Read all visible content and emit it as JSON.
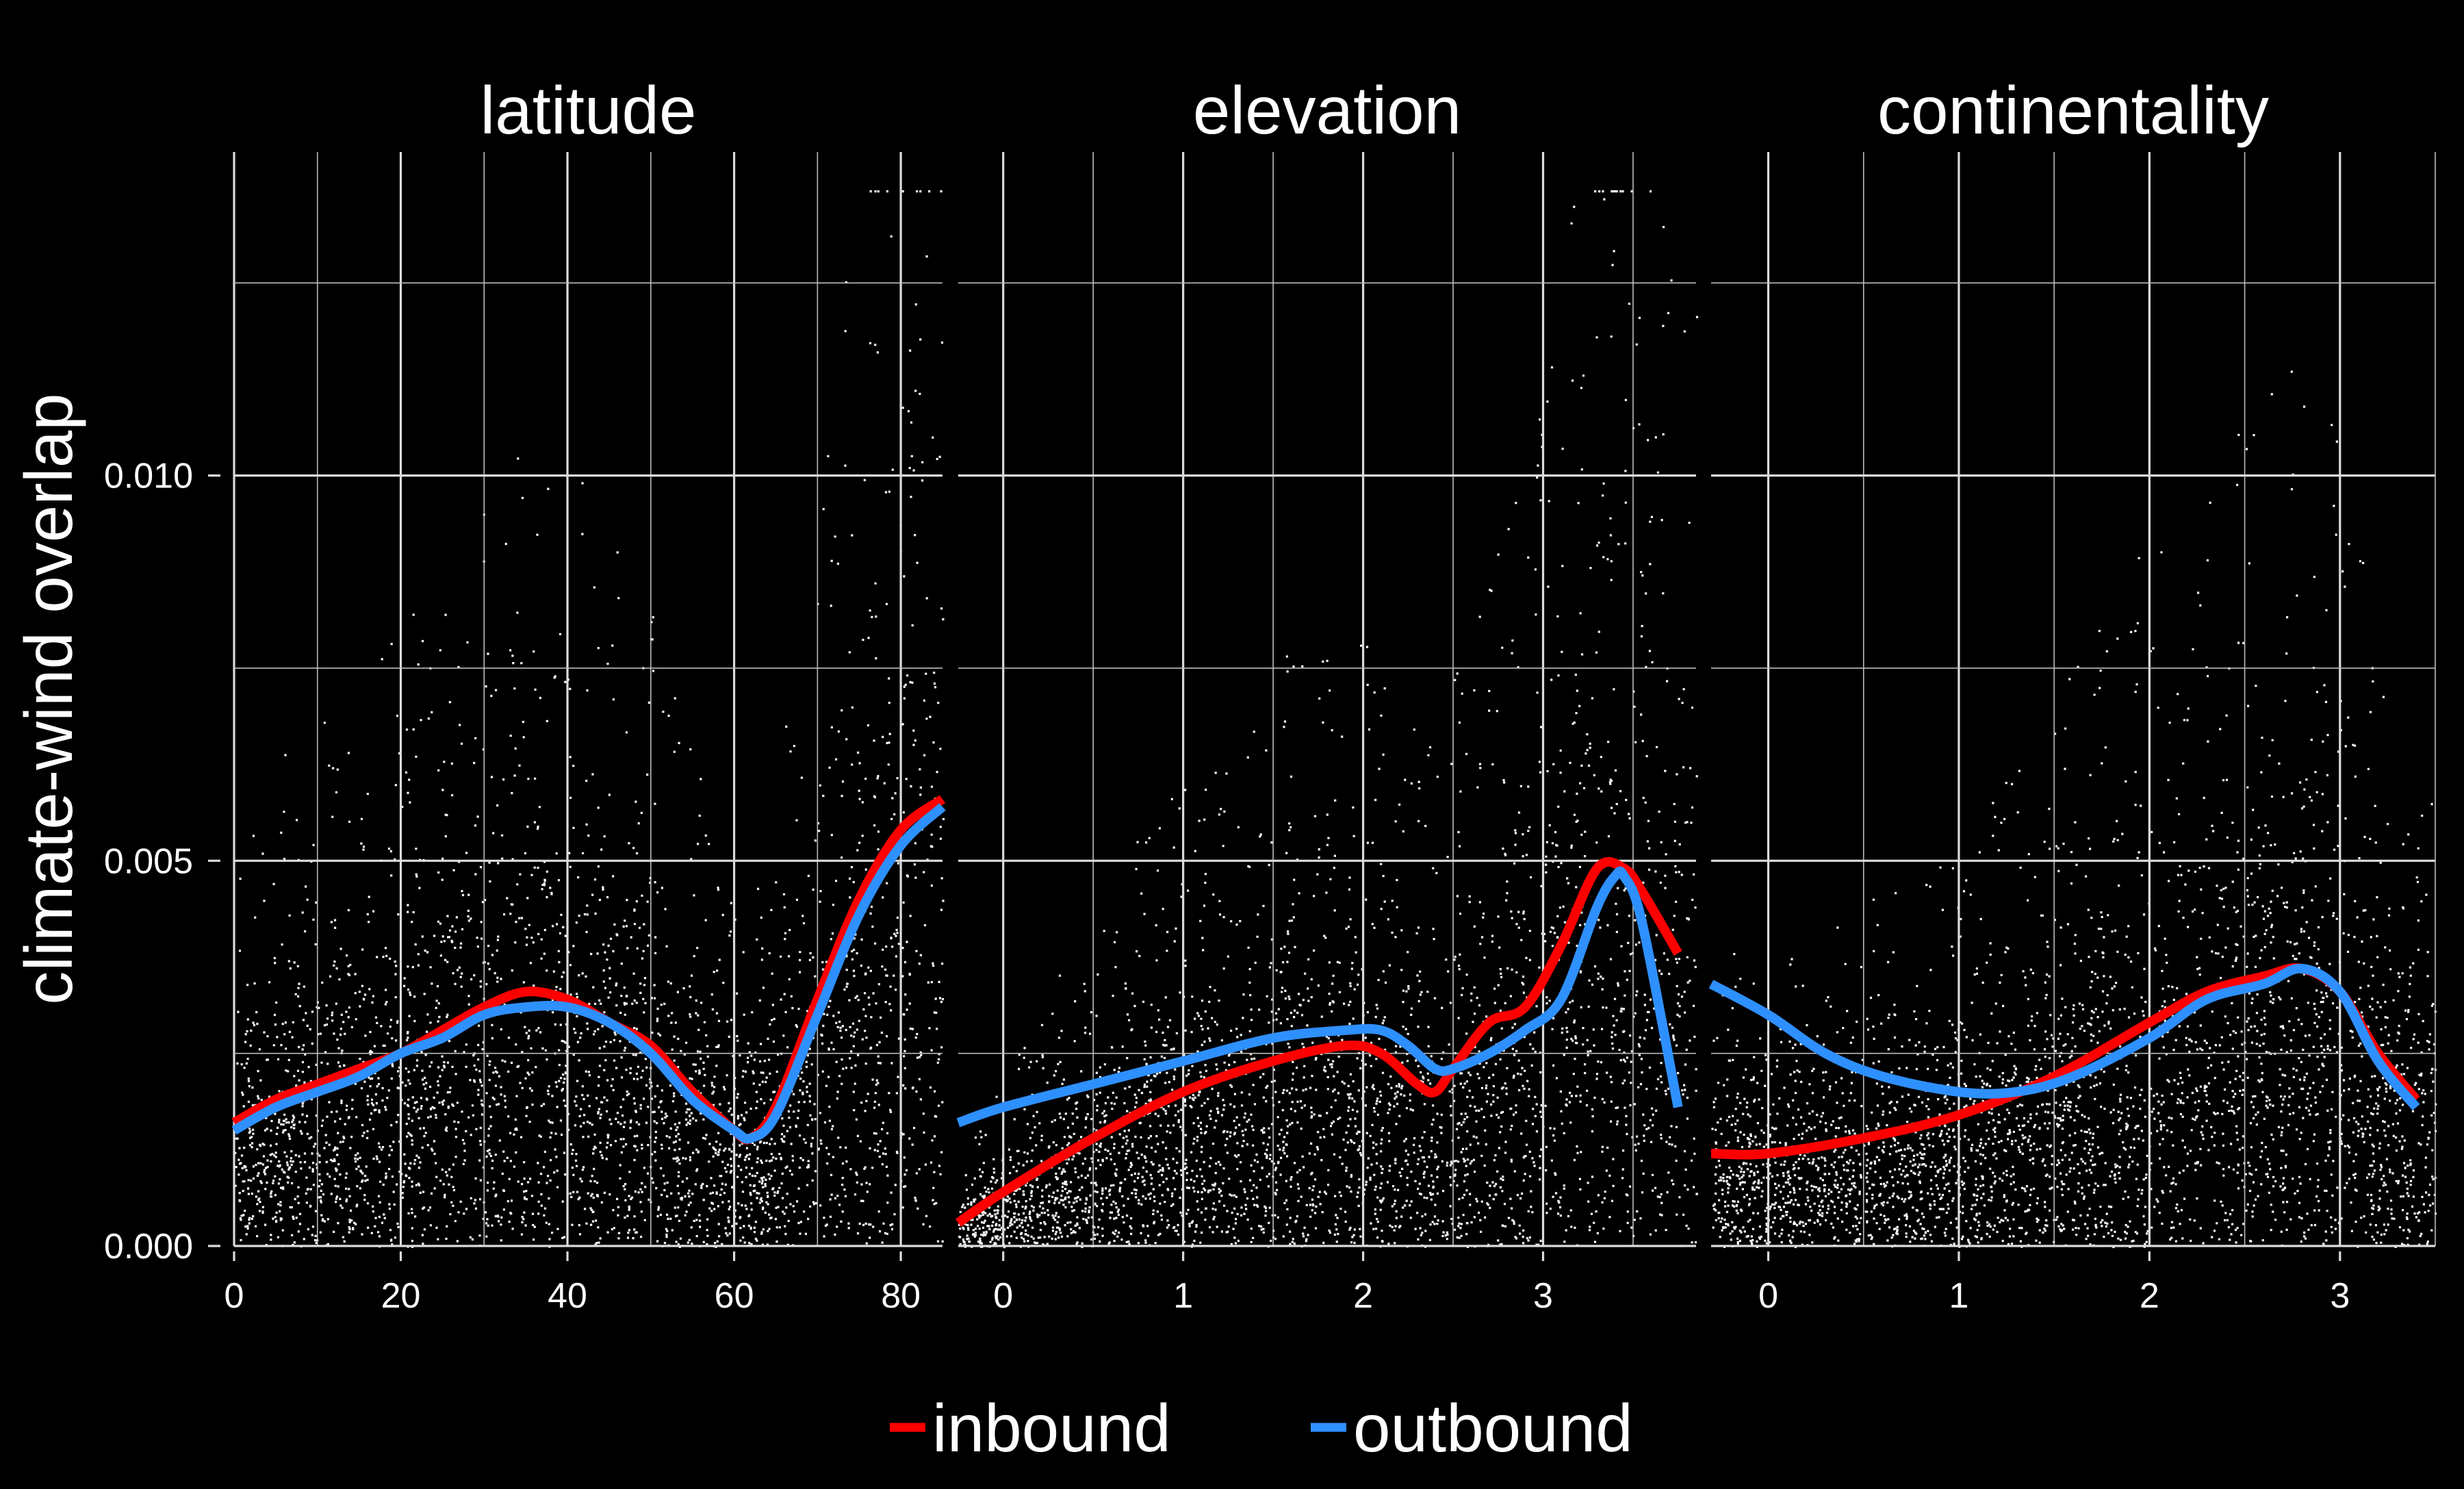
{
  "chart_data": {
    "type": "scatter",
    "ylabel": "climate-wind overlap",
    "ylim": [
      0,
      0.0142
    ],
    "yticks": [
      0.0,
      0.005,
      0.01
    ],
    "ytick_labels": [
      "0.000",
      "0.005",
      "0.010"
    ],
    "legend": {
      "placement": "bottom",
      "entries": [
        {
          "label": "inbound",
          "color": "#ff0000"
        },
        {
          "label": "outbound",
          "color": "#2e90ff"
        }
      ]
    },
    "grid": true,
    "point_color": "#ffffff",
    "panels": [
      {
        "title": "latitude",
        "xlim": [
          0,
          85
        ],
        "xticks": [
          0,
          20,
          40,
          60,
          80
        ],
        "xtick_labels": [
          "0",
          "20",
          "40",
          "60",
          "80"
        ],
        "series": [
          {
            "name": "inbound",
            "color": "#ff0000",
            "x": [
              0,
              5,
              10,
              15,
              20,
              25,
              30,
              35,
              40,
              45,
              50,
              55,
              60,
              62,
              65,
              70,
              75,
              80,
              85
            ],
            "y": [
              0.0016,
              0.0019,
              0.0021,
              0.0023,
              0.0025,
              0.0028,
              0.0031,
              0.0033,
              0.0032,
              0.0029,
              0.0026,
              0.002,
              0.0015,
              0.0014,
              0.0018,
              0.0032,
              0.0045,
              0.0054,
              0.0058
            ]
          },
          {
            "name": "outbound",
            "color": "#2e90ff",
            "x": [
              0,
              5,
              10,
              15,
              20,
              25,
              30,
              35,
              40,
              45,
              50,
              55,
              60,
              62,
              65,
              70,
              75,
              80,
              85
            ],
            "y": [
              0.0015,
              0.0018,
              0.002,
              0.0022,
              0.0025,
              0.0027,
              0.003,
              0.0031,
              0.0031,
              0.0029,
              0.0025,
              0.0019,
              0.0015,
              0.0014,
              0.0017,
              0.003,
              0.0043,
              0.0052,
              0.0057
            ]
          }
        ]
      },
      {
        "title": "elevation",
        "xlim": [
          -0.25,
          3.85
        ],
        "xticks": [
          0,
          1,
          2,
          3
        ],
        "xtick_labels": [
          "0",
          "1",
          "2",
          "3"
        ],
        "series": [
          {
            "name": "inbound",
            "color": "#ff0000",
            "x": [
              -0.25,
              0,
              0.5,
              1,
              1.5,
              1.9,
              2.1,
              2.3,
              2.4,
              2.5,
              2.7,
              2.9,
              3.1,
              3.3,
              3.45,
              3.55,
              3.75
            ],
            "y": [
              0.0003,
              0.0007,
              0.0014,
              0.002,
              0.0024,
              0.0026,
              0.0025,
              0.0021,
              0.002,
              0.0023,
              0.0029,
              0.0031,
              0.0039,
              0.0049,
              0.0049,
              0.0046,
              0.0038
            ]
          },
          {
            "name": "outbound",
            "color": "#2e90ff",
            "x": [
              -0.25,
              0,
              0.5,
              1,
              1.5,
              1.9,
              2.1,
              2.25,
              2.4,
              2.5,
              2.7,
              2.9,
              3.1,
              3.3,
              3.4,
              3.45,
              3.55,
              3.75
            ],
            "y": [
              0.0016,
              0.0018,
              0.0021,
              0.0024,
              0.0027,
              0.0028,
              0.0028,
              0.0026,
              0.0023,
              0.0023,
              0.0025,
              0.0028,
              0.0032,
              0.0044,
              0.0048,
              0.0048,
              0.0042,
              0.0018
            ]
          }
        ]
      },
      {
        "title": "continentality",
        "xlim": [
          -0.3,
          3.5
        ],
        "xticks": [
          0,
          1,
          2,
          3
        ],
        "xtick_labels": [
          "0",
          "1",
          "2",
          "3"
        ],
        "series": [
          {
            "name": "inbound",
            "color": "#ff0000",
            "x": [
              -0.3,
              0,
              0.5,
              1,
              1.5,
              2,
              2.3,
              2.6,
              2.8,
              3.0,
              3.2,
              3.4
            ],
            "y": [
              0.0012,
              0.0012,
              0.0014,
              0.0017,
              0.0022,
              0.0029,
              0.0033,
              0.0035,
              0.0036,
              0.0033,
              0.0025,
              0.0019
            ]
          },
          {
            "name": "outbound",
            "color": "#2e90ff",
            "x": [
              -0.3,
              0,
              0.3,
              0.6,
              1.0,
              1.3,
              1.6,
              2.0,
              2.3,
              2.6,
              2.8,
              3.0,
              3.2,
              3.4
            ],
            "y": [
              0.0034,
              0.003,
              0.0025,
              0.0022,
              0.002,
              0.002,
              0.0022,
              0.0027,
              0.0032,
              0.0034,
              0.0036,
              0.0033,
              0.0024,
              0.0018
            ]
          }
        ]
      }
    ]
  }
}
